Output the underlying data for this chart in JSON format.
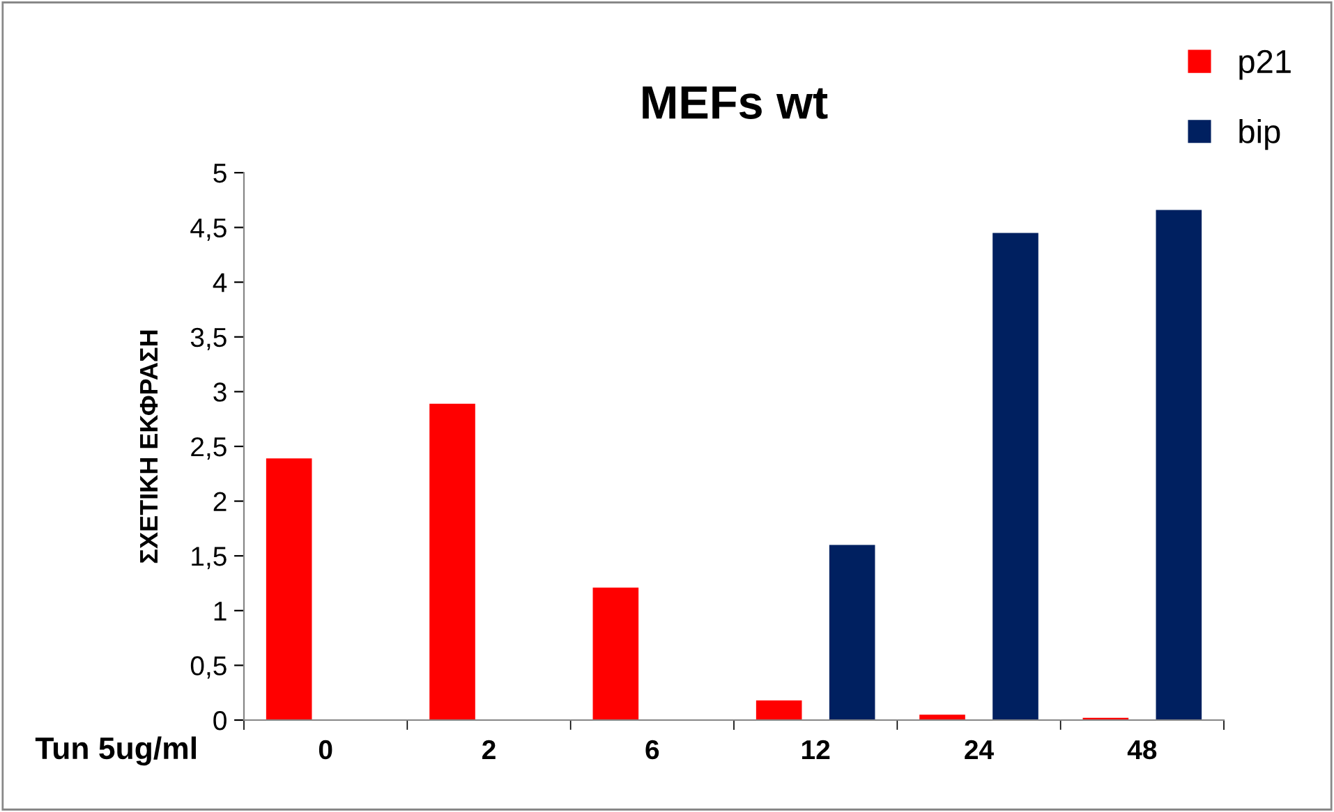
{
  "chart_data": {
    "type": "bar",
    "title": "MEFs wt",
    "xlabel": "Tun 5ug/ml",
    "ylabel": "ΣΧΕΤΙΚΗ ΕΚΦΡΑΣΗ",
    "categories": [
      "0",
      "2",
      "6",
      "12",
      "24",
      "48"
    ],
    "series": [
      {
        "name": "p21",
        "color": "#ff0000",
        "values": [
          2.39,
          2.89,
          1.21,
          0.18,
          0.05,
          0.02
        ]
      },
      {
        "name": "bip",
        "color": "#002060",
        "values": [
          0,
          0,
          0,
          1.6,
          4.45,
          4.66
        ]
      }
    ],
    "ylim": [
      0,
      5
    ],
    "yticks": [
      0,
      {
        "value": 0.5,
        "label": "0,5"
      },
      1,
      {
        "value": 1.5,
        "label": "1,5"
      },
      2,
      {
        "value": 2.5,
        "label": "2,5"
      },
      3,
      {
        "value": 3.5,
        "label": "3,5"
      },
      4,
      {
        "value": 4.5,
        "label": "4,5"
      },
      5
    ],
    "grid": false,
    "legend": "top right"
  }
}
